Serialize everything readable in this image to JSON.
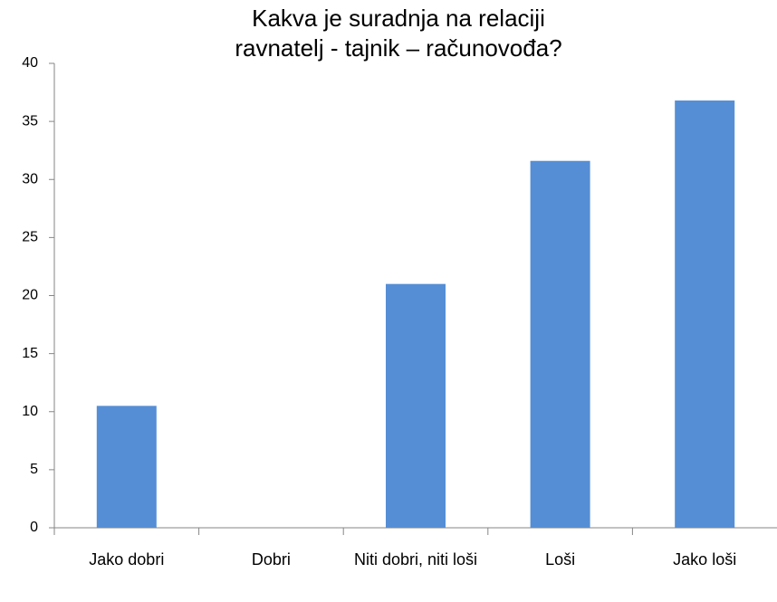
{
  "chart_data": {
    "type": "bar",
    "title": [
      "Kakva je suradnja na relaciji",
      "ravnatelj - tajnik – računovođa?"
    ],
    "categories": [
      "Jako dobri",
      "Dobri",
      "Niti dobri, niti loši",
      "Loši",
      "Jako loši"
    ],
    "values": [
      10.5,
      0,
      21,
      31.6,
      36.8
    ],
    "color": "#558ed5",
    "ylim": [
      0,
      40
    ],
    "yticks": [
      0,
      5,
      10,
      15,
      20,
      25,
      30,
      35,
      40
    ],
    "grid": false
  }
}
